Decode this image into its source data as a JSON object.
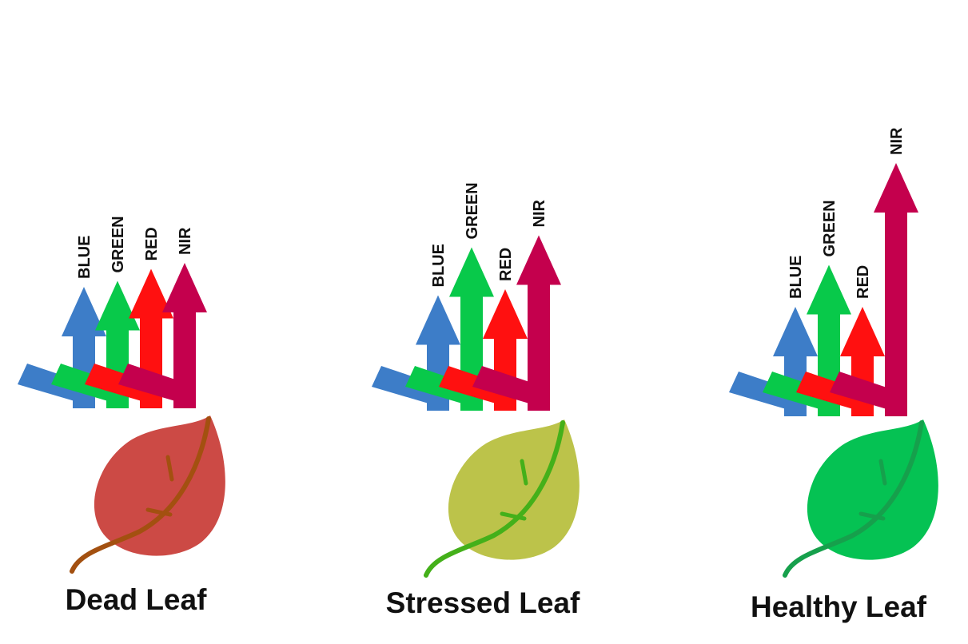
{
  "bands": [
    {
      "key": "blue",
      "label": "BLUE",
      "color": "#3d7dc8"
    },
    {
      "key": "green",
      "label": "GREEN",
      "color": "#08c94a"
    },
    {
      "key": "red",
      "label": "RED",
      "color": "#ff1010"
    },
    {
      "key": "nir",
      "label": "NIR",
      "color": "#c4004d"
    }
  ],
  "leaves": [
    {
      "title": "Dead Leaf",
      "leaf_color": "#cc4a45",
      "vein_color": "#a35010",
      "relative_reflectance": {
        "blue": 0.6,
        "green": 0.65,
        "red": 0.75,
        "nir": 0.8
      }
    },
    {
      "title": "Stressed Leaf",
      "leaf_color": "#bcc34a",
      "vein_color": "#44b01a",
      "relative_reflectance": {
        "blue": 0.55,
        "green": 0.95,
        "red": 0.6,
        "nir": 1.05
      }
    },
    {
      "title": "Healthy Leaf",
      "leaf_color": "#05c253",
      "vein_color": "#16a04c",
      "relative_reflectance": {
        "blue": 0.5,
        "green": 0.85,
        "red": 0.5,
        "nir": 1.7
      }
    }
  ]
}
